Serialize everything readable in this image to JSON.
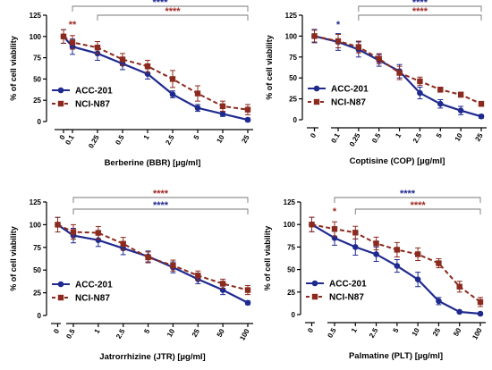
{
  "colors": {
    "acc": "#1f2a8f",
    "nci": "#8b2a1e",
    "star_blue": "#1f2a8f",
    "star_red": "#a02a22"
  },
  "chart_data": [
    {
      "type": "line",
      "xlabel": "Berberine (BBR) [µg/ml]",
      "ylabel": "% of cell viability",
      "ylim": [
        0,
        125
      ],
      "yticks": [
        "0",
        "25",
        "50",
        "75",
        "100",
        "125"
      ],
      "categories": [
        "0",
        "0.1",
        "0.25",
        "0.5",
        "1",
        "2.5",
        "5",
        "10",
        "25"
      ],
      "series": [
        {
          "name": "ACC-201",
          "values": [
            100,
            88,
            80,
            68,
            56,
            32,
            16,
            9,
            2
          ],
          "errors": [
            8,
            9,
            8,
            7,
            6,
            4,
            4,
            3,
            2
          ]
        },
        {
          "name": "NCI-N87",
          "values": [
            100,
            93,
            87,
            73,
            65,
            50,
            33,
            18,
            14
          ],
          "errors": [
            8,
            8,
            7,
            7,
            7,
            10,
            9,
            6,
            6
          ]
        }
      ],
      "significance": [
        {
          "label": "****",
          "color": "star_blue",
          "from": 1,
          "to": 8
        },
        {
          "label": "**",
          "color": "star_red",
          "at": 1
        },
        {
          "label": "****",
          "color": "star_red",
          "from": 2,
          "to": 8
        }
      ]
    },
    {
      "type": "line",
      "xlabel": "Coptisine (COP) [µg/ml]",
      "ylabel": "% of cell viability",
      "ylim": [
        0,
        125
      ],
      "yticks": [
        "0",
        "25",
        "50",
        "75",
        "100",
        "125"
      ],
      "categories": [
        "0",
        "0.1",
        "0.25",
        "0.5",
        "1",
        "2.5",
        "5",
        "10",
        "25"
      ],
      "series": [
        {
          "name": "ACC-201",
          "values": [
            100,
            93,
            84,
            71,
            58,
            32,
            19,
            11,
            4
          ],
          "errors": [
            8,
            10,
            9,
            7,
            8,
            7,
            5,
            5,
            2
          ]
        },
        {
          "name": "NCI-N87",
          "values": [
            100,
            94,
            87,
            73,
            56,
            46,
            36,
            30,
            19
          ],
          "errors": [
            7,
            8,
            7,
            6,
            8,
            5,
            3,
            3,
            3
          ]
        }
      ],
      "significance": [
        {
          "label": "*",
          "color": "star_blue",
          "at": 1
        },
        {
          "label": "****",
          "color": "star_blue",
          "from": 2,
          "to": 8
        },
        {
          "label": "****",
          "color": "star_red",
          "from": 2,
          "to": 8
        }
      ]
    },
    {
      "type": "line",
      "xlabel": "Jatrorrhizine (JTR) [µg/ml]",
      "ylabel": "% of cell viability",
      "ylim": [
        0,
        125
      ],
      "yticks": [
        "0",
        "25",
        "50",
        "75",
        "100",
        "125"
      ],
      "categories": [
        "0",
        "0.5",
        "1",
        "2.5",
        "5",
        "10",
        "25",
        "50",
        "100"
      ],
      "series": [
        {
          "name": "ACC-201",
          "values": [
            100,
            88,
            83,
            74,
            65,
            53,
            40,
            28,
            14
          ],
          "errors": [
            8,
            8,
            7,
            7,
            6,
            6,
            5,
            5,
            2
          ]
        },
        {
          "name": "NCI-N87",
          "values": [
            100,
            92,
            91,
            79,
            64,
            55,
            44,
            35,
            28
          ],
          "errors": [
            8,
            8,
            7,
            7,
            6,
            6,
            5,
            5,
            5
          ]
        }
      ],
      "significance": [
        {
          "label": "****",
          "color": "star_red",
          "from": 1,
          "to": 8
        },
        {
          "label": "****",
          "color": "star_blue",
          "from": 1,
          "to": 8
        }
      ]
    },
    {
      "type": "line",
      "xlabel": "Palmatine (PLT) [µg/ml]",
      "ylabel": "% of cell viability",
      "ylim": [
        0,
        125
      ],
      "yticks": [
        "0",
        "25",
        "50",
        "75",
        "100",
        "125"
      ],
      "categories": [
        "0",
        "0.5",
        "1",
        "2.5",
        "5",
        "10",
        "25",
        "50",
        "100"
      ],
      "series": [
        {
          "name": "ACC-201",
          "values": [
            100,
            85,
            75,
            67,
            54,
            39,
            15,
            3,
            1
          ],
          "errors": [
            8,
            8,
            9,
            8,
            7,
            8,
            4,
            1,
            1
          ]
        },
        {
          "name": "NCI-N87",
          "values": [
            100,
            95,
            91,
            79,
            72,
            67,
            57,
            31,
            14
          ],
          "errors": [
            8,
            8,
            7,
            7,
            8,
            7,
            5,
            6,
            5
          ]
        }
      ],
      "significance": [
        {
          "label": "*",
          "color": "star_red",
          "at": 1
        },
        {
          "label": "****",
          "color": "star_blue",
          "from": 1,
          "to": 8
        },
        {
          "label": "****",
          "color": "star_red",
          "from": 2,
          "to": 8
        }
      ]
    }
  ]
}
